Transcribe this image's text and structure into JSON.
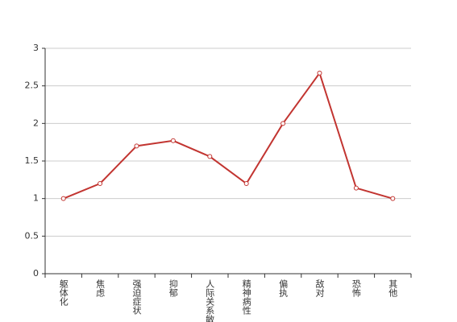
{
  "chart_data": {
    "type": "line",
    "categories": [
      "躯体化",
      "焦虑",
      "强迫症状",
      "抑郁",
      "人际关系敏感",
      "精神病性",
      "偏执",
      "敌对",
      "恐怖",
      "其他"
    ],
    "values": [
      1.0,
      1.2,
      1.7,
      1.77,
      1.56,
      1.2,
      2.0,
      2.67,
      1.14,
      1.0
    ],
    "color": "#c23531",
    "ylim": [
      0,
      3
    ],
    "yticks": [
      0,
      0.5,
      1,
      1.5,
      2,
      2.5,
      3
    ],
    "grid": true
  }
}
